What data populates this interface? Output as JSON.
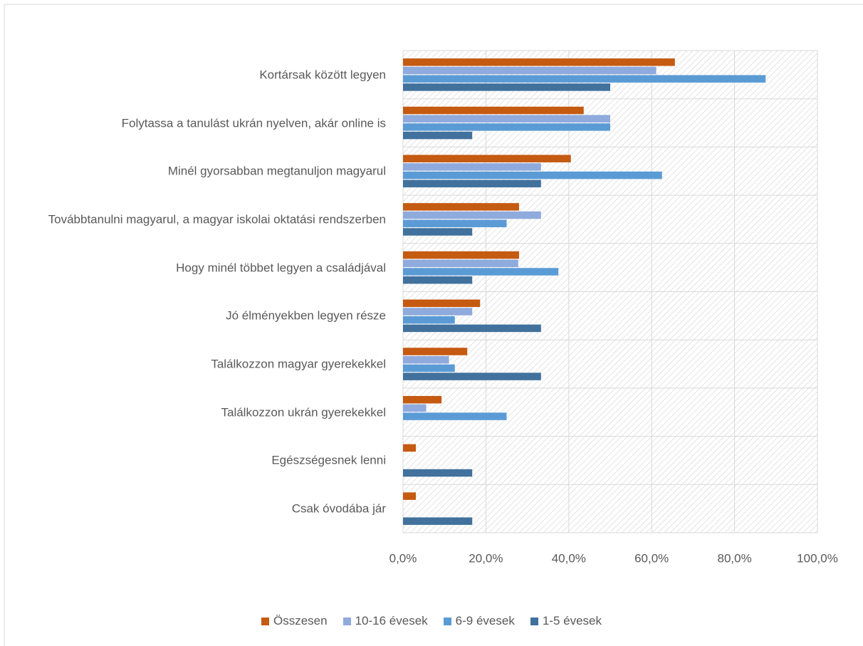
{
  "chart_data": {
    "type": "hbar",
    "categories": [
      "Kortársak között legyen",
      "Folytassa a tanulást ukrán nyelven, akár online is",
      "Minél gyorsabban megtanuljon magyarul",
      "Továbbtanulni magyarul, a magyar iskolai oktatási rendszerben",
      "Hogy minél többet legyen a családjával",
      "Jó élményekben legyen része",
      "Találkozzon magyar gyerekekkel",
      "Találkozzon ukrán gyerekekkel",
      "Egészségesnek lenni",
      "Csak óvodába jár"
    ],
    "series": [
      {
        "name": "Összesen",
        "color": "#c55a11",
        "values": [
          65.6,
          43.6,
          40.5,
          28.0,
          28.0,
          18.6,
          15.5,
          9.3,
          3.1,
          3.1
        ]
      },
      {
        "name": "10-16 évesek",
        "color": "#8faadc",
        "values": [
          61.1,
          50.0,
          33.3,
          33.3,
          27.8,
          16.7,
          11.1,
          5.6,
          0,
          0
        ]
      },
      {
        "name": "6-9 évesek",
        "color": "#5b9bd5",
        "values": [
          87.5,
          50.0,
          62.5,
          25.0,
          37.5,
          12.5,
          12.5,
          25.0,
          0,
          0
        ]
      },
      {
        "name": "1-5 évesek",
        "color": "#41719c",
        "values": [
          50.0,
          16.7,
          33.3,
          16.7,
          16.7,
          33.3,
          33.3,
          0,
          16.7,
          16.7
        ]
      }
    ],
    "xlim": [
      0,
      100
    ],
    "xticks": [
      {
        "value": 0,
        "label": "0,0%"
      },
      {
        "value": 20,
        "label": "20,0%"
      },
      {
        "value": 40,
        "label": "40,0%"
      },
      {
        "value": 60,
        "label": "60,0%"
      },
      {
        "value": 80,
        "label": "80,0%"
      },
      {
        "value": 100,
        "label": "100,0%"
      }
    ],
    "grid": true,
    "legend": "bottom"
  }
}
